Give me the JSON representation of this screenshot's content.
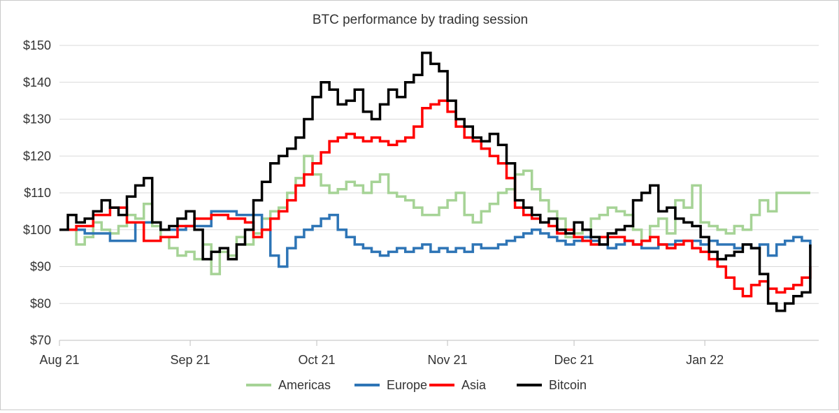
{
  "chart_data": {
    "type": "line",
    "title": "BTC performance by trading session",
    "xlabel": "",
    "ylabel": "",
    "ylim": [
      70,
      150
    ],
    "y_ticks": [
      {
        "value": 70,
        "label": "$70"
      },
      {
        "value": 80,
        "label": "$80"
      },
      {
        "value": 90,
        "label": "$90"
      },
      {
        "value": 100,
        "label": "$100"
      },
      {
        "value": 110,
        "label": "$110"
      },
      {
        "value": 120,
        "label": "$120"
      },
      {
        "value": 130,
        "label": "$130"
      },
      {
        "value": 140,
        "label": "$140"
      },
      {
        "value": 150,
        "label": "$150"
      }
    ],
    "x_ticks": [
      "Aug 21",
      "Sep 21",
      "Oct 21",
      "Nov 21",
      "Dec 21",
      "Jan 22"
    ],
    "x_unit": "days since 2021-08-01",
    "xlim": [
      0,
      180
    ],
    "x_tick_positions": [
      0,
      31,
      61,
      92,
      122,
      153
    ],
    "grid": "horizontal",
    "legend_position": "bottom",
    "series": [
      {
        "name": "Americas",
        "color": "#a6d396",
        "x": [
          0,
          4,
          6,
          8,
          10,
          12,
          14,
          16,
          18,
          20,
          22,
          24,
          26,
          28,
          30,
          32,
          34,
          36,
          38,
          40,
          42,
          44,
          46,
          48,
          50,
          52,
          54,
          56,
          58,
          60,
          62,
          64,
          66,
          68,
          70,
          72,
          74,
          76,
          78,
          80,
          82,
          84,
          86,
          88,
          90,
          92,
          94,
          96,
          98,
          100,
          102,
          104,
          106,
          108,
          110,
          112,
          114,
          116,
          118,
          120,
          122,
          124,
          126,
          128,
          130,
          132,
          134,
          136,
          138,
          140,
          142,
          144,
          146,
          148,
          150,
          152,
          154,
          156,
          158,
          160,
          162,
          164,
          166,
          168,
          170,
          172,
          174,
          176,
          178
        ],
        "values": [
          100,
          96,
          98,
          102,
          100,
          99,
          101,
          104,
          103,
          107,
          101,
          98,
          95,
          93,
          94,
          92,
          96,
          88,
          94,
          93,
          98,
          96,
          99,
          103,
          105,
          106,
          110,
          114,
          120,
          115,
          112,
          110,
          111,
          113,
          112,
          110,
          113,
          115,
          110,
          109,
          108,
          106,
          104,
          104,
          106,
          108,
          110,
          104,
          102,
          105,
          107,
          110,
          111,
          115,
          116,
          111,
          108,
          105,
          103,
          98,
          99,
          100,
          103,
          104,
          106,
          105,
          104,
          100,
          97,
          101,
          103,
          99,
          108,
          106,
          112,
          102,
          101,
          100,
          99,
          101,
          100,
          104,
          108,
          105,
          110,
          110,
          110,
          110,
          110
        ]
      },
      {
        "name": "Europe",
        "color": "#2e75b6",
        "x": [
          0,
          6,
          12,
          18,
          24,
          30,
          36,
          42,
          48,
          50,
          52,
          54,
          56,
          58,
          60,
          62,
          64,
          66,
          68,
          70,
          72,
          74,
          76,
          78,
          80,
          82,
          84,
          86,
          88,
          90,
          92,
          94,
          96,
          98,
          100,
          102,
          104,
          106,
          108,
          110,
          112,
          114,
          116,
          118,
          120,
          122,
          124,
          126,
          128,
          130,
          132,
          134,
          136,
          138,
          140,
          142,
          144,
          146,
          148,
          150,
          152,
          154,
          156,
          158,
          160,
          162,
          164,
          166,
          168,
          170,
          172,
          174,
          176,
          178
        ],
        "values": [
          100,
          99,
          97,
          102,
          100,
          101,
          105,
          104,
          100,
          93,
          90,
          95,
          98,
          100,
          101,
          103,
          104,
          100,
          98,
          96,
          95,
          94,
          93,
          94,
          95,
          94,
          95,
          96,
          94,
          95,
          94,
          95,
          94,
          96,
          95,
          95,
          96,
          97,
          98,
          99,
          100,
          99,
          98,
          97,
          96,
          97,
          98,
          97,
          96,
          95,
          96,
          97,
          96,
          95,
          95,
          96,
          96,
          97,
          97,
          97,
          96,
          97,
          96,
          96,
          95,
          96,
          95,
          96,
          93,
          96,
          97,
          98,
          97,
          95
        ]
      },
      {
        "name": "Asia",
        "color": "#ff0000",
        "x": [
          0,
          4,
          8,
          12,
          16,
          20,
          24,
          28,
          32,
          36,
          40,
          44,
          46,
          48,
          50,
          52,
          54,
          56,
          58,
          60,
          62,
          64,
          66,
          68,
          70,
          72,
          74,
          76,
          78,
          80,
          82,
          84,
          86,
          88,
          90,
          92,
          94,
          96,
          98,
          100,
          102,
          104,
          106,
          108,
          110,
          112,
          114,
          116,
          118,
          120,
          122,
          124,
          126,
          128,
          130,
          132,
          134,
          136,
          138,
          140,
          142,
          144,
          146,
          148,
          150,
          152,
          154,
          156,
          158,
          160,
          162,
          164,
          166,
          168,
          170,
          172,
          174,
          176,
          178
        ],
        "values": [
          100,
          101,
          104,
          106,
          102,
          97,
          98,
          101,
          103,
          104,
          103,
          102,
          98,
          100,
          103,
          105,
          108,
          112,
          115,
          118,
          121,
          124,
          125,
          126,
          125,
          124,
          125,
          124,
          123,
          124,
          125,
          128,
          133,
          134,
          135,
          132,
          128,
          125,
          124,
          122,
          120,
          118,
          114,
          106,
          104,
          103,
          102,
          101,
          99,
          100,
          98,
          97,
          96,
          98,
          98,
          98,
          97,
          96,
          97,
          98,
          96,
          95,
          96,
          97,
          95,
          94,
          92,
          90,
          87,
          84,
          82,
          85,
          86,
          84,
          83,
          84,
          85,
          87,
          90
        ]
      },
      {
        "name": "Bitcoin",
        "color": "#000000",
        "x": [
          0,
          2,
          4,
          6,
          8,
          10,
          12,
          14,
          16,
          18,
          20,
          22,
          24,
          26,
          28,
          30,
          32,
          34,
          36,
          38,
          40,
          42,
          44,
          46,
          48,
          50,
          52,
          54,
          56,
          58,
          60,
          62,
          64,
          66,
          68,
          70,
          72,
          74,
          76,
          78,
          80,
          82,
          84,
          86,
          88,
          90,
          92,
          94,
          96,
          98,
          100,
          102,
          104,
          106,
          108,
          110,
          112,
          114,
          116,
          118,
          120,
          122,
          124,
          126,
          128,
          130,
          132,
          134,
          136,
          138,
          140,
          142,
          144,
          146,
          148,
          150,
          152,
          154,
          156,
          158,
          160,
          162,
          164,
          166,
          168,
          170,
          172,
          174,
          176,
          178
        ],
        "values": [
          100,
          104,
          102,
          103,
          105,
          108,
          106,
          104,
          109,
          112,
          114,
          102,
          100,
          101,
          103,
          105,
          100,
          92,
          94,
          95,
          92,
          96,
          100,
          108,
          113,
          118,
          120,
          122,
          125,
          130,
          136,
          140,
          138,
          134,
          135,
          138,
          132,
          130,
          134,
          138,
          136,
          140,
          142,
          148,
          145,
          143,
          135,
          130,
          128,
          125,
          124,
          126,
          123,
          118,
          108,
          106,
          104,
          102,
          103,
          100,
          99,
          102,
          100,
          98,
          96,
          99,
          100,
          101,
          108,
          110,
          112,
          105,
          106,
          103,
          102,
          101,
          98,
          94,
          92,
          93,
          94,
          96,
          95,
          88,
          80,
          78,
          80,
          82,
          83,
          96
        ]
      }
    ]
  }
}
